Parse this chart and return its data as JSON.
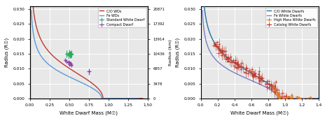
{
  "left_panel": {
    "xlabel": "White Dwarf Mass (M☉)",
    "ylabel": "Radius (R☉)",
    "ylabel_right": "Radius (km)",
    "xlim": [
      0.0,
      1.5
    ],
    "ylim": [
      0.0,
      0.031
    ],
    "yticks": [
      0.0,
      0.005,
      0.01,
      0.015,
      0.02,
      0.025,
      0.03
    ],
    "xticks": [
      0.0,
      0.25,
      0.5,
      0.75,
      1.0,
      1.25,
      1.5
    ],
    "yticks_right": [
      0,
      3478,
      6957,
      10436,
      13914,
      17392,
      20871
    ],
    "co_line_color": "#c0392b",
    "fe_line_color": "#5b9bd5",
    "std_wd_color": "#27ae60",
    "compact_color": "#8e44ad",
    "legend_labels": [
      "C/O WDs",
      "Fe WDs",
      "Standard White Dwarf",
      "Compact Dwarf"
    ],
    "std_wd_points": [
      [
        0.47,
        0.015
      ],
      [
        0.5,
        0.0152
      ],
      [
        0.51,
        0.0148
      ],
      [
        0.53,
        0.015
      ],
      [
        0.49,
        0.0146
      ],
      [
        0.52,
        0.0148
      ]
    ],
    "std_wd_xerr": [
      0.025,
      0.025,
      0.025,
      0.025,
      0.025,
      0.025
    ],
    "std_wd_yerr": [
      0.0012,
      0.0012,
      0.0012,
      0.0012,
      0.0012,
      0.0012
    ],
    "compact_points": [
      [
        0.45,
        0.0128
      ],
      [
        0.47,
        0.0125
      ],
      [
        0.49,
        0.0122
      ],
      [
        0.5,
        0.012
      ],
      [
        0.51,
        0.0118
      ],
      [
        0.52,
        0.0117
      ],
      [
        0.5,
        0.0115
      ],
      [
        0.53,
        0.0113
      ],
      [
        0.75,
        0.009
      ]
    ],
    "compact_xerr": [
      0.015,
      0.015,
      0.015,
      0.015,
      0.015,
      0.015,
      0.015,
      0.015,
      0.025
    ],
    "compact_yerr": [
      0.0007,
      0.0007,
      0.0007,
      0.0007,
      0.0007,
      0.0007,
      0.0007,
      0.0007,
      0.001
    ]
  },
  "right_panel": {
    "xlabel": "White Dwarf Mass (M☉)",
    "ylabel": "Radius (R☉)",
    "xlim": [
      0.0,
      1.4
    ],
    "ylim": [
      0.0,
      0.031
    ],
    "yticks": [
      0.0,
      0.005,
      0.01,
      0.015,
      0.02,
      0.025,
      0.03
    ],
    "xticks": [
      0.0,
      0.2,
      0.4,
      0.6,
      0.8,
      1.0,
      1.2,
      1.4
    ],
    "co_line_color": "#2471a3",
    "fe_line_color": "#7b7fc4",
    "highmass_color": "#e67e22",
    "catalog_color": "#c0392b",
    "legend_labels": [
      "C/O White Dwarfs",
      "Fe White Dwarfs",
      "High Mass White Dwarfs",
      "Catalog White Dwarfs"
    ]
  },
  "bg_color": "#e8e8e8",
  "grid_color": "white",
  "r_sun_km": 695700
}
